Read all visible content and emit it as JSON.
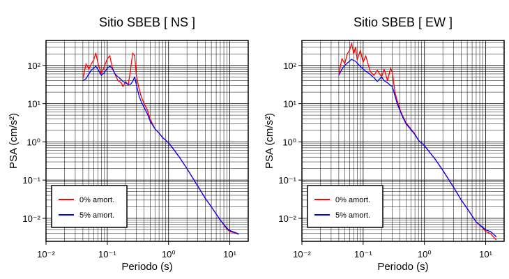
{
  "chart_data": [
    {
      "type": "line",
      "title": "Sitio SBEB [ NS ]",
      "xlabel": "Periodo (s)",
      "ylabel": "PSA (cm/s²)",
      "xscale": "log",
      "yscale": "log",
      "xlim": [
        0.01,
        20
      ],
      "ylim": [
        0.0025,
        450
      ],
      "grid": true,
      "legend_position": "bottom-left",
      "series": [
        {
          "name": "0% amort.",
          "color": "#ff0000",
          "x": [
            0.04,
            0.045,
            0.05,
            0.055,
            0.06,
            0.065,
            0.07,
            0.08,
            0.09,
            0.1,
            0.11,
            0.12,
            0.13,
            0.14,
            0.15,
            0.17,
            0.18,
            0.2,
            0.22,
            0.24,
            0.26,
            0.28,
            0.3,
            0.33,
            0.36,
            0.4,
            0.45,
            0.5,
            0.6,
            0.7,
            0.8,
            1.0,
            1.2,
            1.5,
            2.0,
            3.0,
            4.0,
            5.0,
            7.0,
            9.0,
            10.0,
            12.0,
            14.0
          ],
          "values": [
            45,
            110,
            80,
            110,
            140,
            210,
            120,
            60,
            95,
            150,
            180,
            90,
            65,
            50,
            40,
            35,
            28,
            38,
            30,
            80,
            210,
            180,
            50,
            25,
            15,
            10,
            7,
            4,
            2.2,
            1.7,
            1.3,
            0.95,
            0.65,
            0.4,
            0.2,
            0.07,
            0.033,
            0.02,
            0.009,
            0.0052,
            0.0045,
            0.0042,
            0.0038
          ]
        },
        {
          "name": "5% amort.",
          "color": "#0000ff",
          "x": [
            0.04,
            0.045,
            0.05,
            0.055,
            0.06,
            0.065,
            0.07,
            0.08,
            0.09,
            0.1,
            0.11,
            0.12,
            0.13,
            0.14,
            0.15,
            0.17,
            0.18,
            0.2,
            0.22,
            0.24,
            0.26,
            0.28,
            0.3,
            0.33,
            0.36,
            0.4,
            0.45,
            0.5,
            0.6,
            0.7,
            0.8,
            1.0,
            1.2,
            1.5,
            2.0,
            3.0,
            4.0,
            5.0,
            7.0,
            9.0,
            10.0,
            12.0,
            14.0
          ],
          "values": [
            40,
            45,
            60,
            75,
            85,
            95,
            80,
            55,
            65,
            85,
            95,
            85,
            65,
            55,
            50,
            42,
            38,
            35,
            32,
            32,
            38,
            50,
            30,
            16,
            11,
            8,
            5.5,
            3.5,
            2.2,
            1.7,
            1.3,
            0.95,
            0.65,
            0.4,
            0.2,
            0.07,
            0.033,
            0.02,
            0.009,
            0.0055,
            0.0048,
            0.0043,
            0.0039
          ]
        }
      ]
    },
    {
      "type": "line",
      "title": "Sitio SBEB [ EW ]",
      "xlabel": "Periodo (s)",
      "ylabel": "PSA (cm/s²)",
      "xscale": "log",
      "yscale": "log",
      "xlim": [
        0.01,
        20
      ],
      "ylim": [
        0.0025,
        450
      ],
      "grid": true,
      "legend_position": "bottom-left",
      "series": [
        {
          "name": "0% amort.",
          "color": "#ff0000",
          "x": [
            0.04,
            0.045,
            0.05,
            0.055,
            0.06,
            0.065,
            0.07,
            0.075,
            0.08,
            0.09,
            0.1,
            0.11,
            0.12,
            0.13,
            0.15,
            0.17,
            0.2,
            0.22,
            0.25,
            0.28,
            0.3,
            0.33,
            0.36,
            0.4,
            0.45,
            0.5,
            0.6,
            0.7,
            0.8,
            1.0,
            1.2,
            1.5,
            2.0,
            3.0,
            4.0,
            5.0,
            7.0,
            9.0,
            10.0,
            12.0,
            14.0,
            15.0
          ],
          "values": [
            60,
            150,
            110,
            200,
            250,
            380,
            200,
            300,
            140,
            250,
            120,
            180,
            110,
            70,
            55,
            75,
            50,
            80,
            40,
            85,
            65,
            20,
            12,
            7,
            4.5,
            3.2,
            2.2,
            1.6,
            1.1,
            0.8,
            0.55,
            0.35,
            0.18,
            0.065,
            0.03,
            0.018,
            0.008,
            0.0055,
            0.0045,
            0.004,
            0.003,
            0.0027
          ]
        },
        {
          "name": "5% amort.",
          "color": "#0000ff",
          "x": [
            0.04,
            0.045,
            0.05,
            0.055,
            0.06,
            0.065,
            0.07,
            0.075,
            0.08,
            0.09,
            0.1,
            0.11,
            0.12,
            0.13,
            0.15,
            0.17,
            0.2,
            0.22,
            0.25,
            0.28,
            0.3,
            0.33,
            0.36,
            0.4,
            0.45,
            0.5,
            0.6,
            0.7,
            0.8,
            1.0,
            1.2,
            1.5,
            2.0,
            3.0,
            4.0,
            5.0,
            7.0,
            9.0,
            10.0,
            12.0,
            14.0,
            15.0
          ],
          "values": [
            55,
            80,
            100,
            115,
            130,
            145,
            135,
            130,
            115,
            95,
            80,
            70,
            65,
            58,
            48,
            38,
            50,
            40,
            35,
            30,
            28,
            16,
            10,
            6.5,
            4.2,
            3,
            2.1,
            1.55,
            1.1,
            0.8,
            0.55,
            0.35,
            0.18,
            0.065,
            0.03,
            0.018,
            0.008,
            0.0058,
            0.005,
            0.0045,
            0.0036,
            0.0032
          ]
        }
      ]
    }
  ]
}
